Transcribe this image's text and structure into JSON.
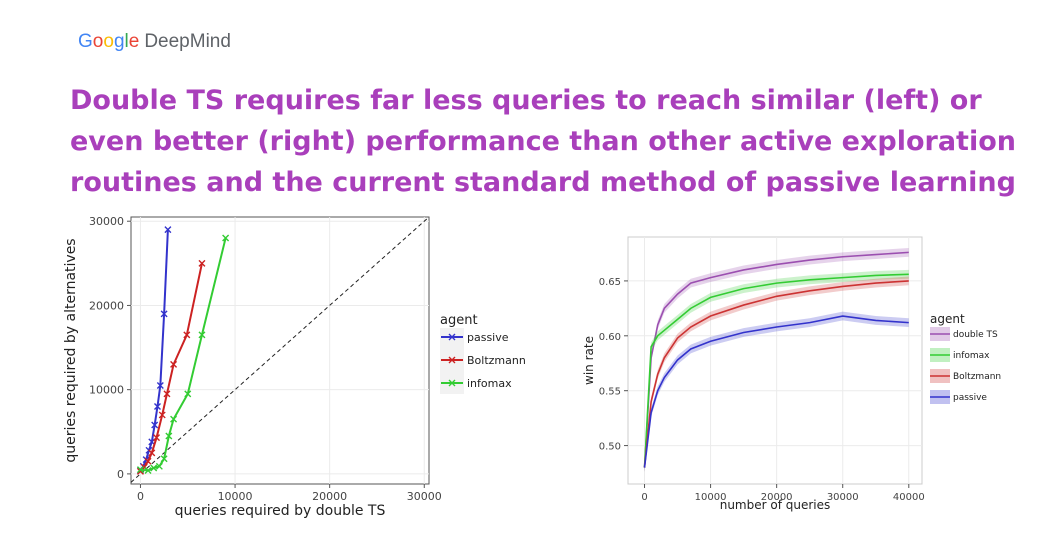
{
  "header": {
    "logo_google": "Google",
    "logo_deepmind": "DeepMind",
    "headline": "Double TS requires far less queries to reach similar (left) or even better (right) performance than other active exploration routines and the current standard method of passive learning"
  },
  "chart_data": [
    {
      "type": "line",
      "title": "",
      "xlabel": "queries required by double TS",
      "ylabel": "queries required by alternatives",
      "xlim": [
        -1000,
        30500
      ],
      "ylim": [
        -1200,
        30500
      ],
      "xticks": [
        "0",
        "10000",
        "20000",
        "30000"
      ],
      "yticks": [
        "0",
        "10000",
        "20000",
        "30000"
      ],
      "grid": true,
      "legend_title": "agent",
      "legend_position": "right",
      "reference_line": "y = x (dashed)",
      "marker": "x",
      "series": [
        {
          "name": "passive",
          "color": "#3333cc",
          "x": [
            0,
            300,
            600,
            900,
            1200,
            1500,
            1800,
            2100,
            2500,
            2900
          ],
          "y": [
            400,
            900,
            1700,
            2800,
            3800,
            5800,
            8000,
            10500,
            19000,
            29000
          ]
        },
        {
          "name": "Boltzmann",
          "color": "#cc2222",
          "x": [
            0,
            400,
            800,
            1200,
            1700,
            2300,
            2800,
            3500,
            4900,
            6500
          ],
          "y": [
            300,
            800,
            1500,
            2500,
            4300,
            7000,
            9500,
            13000,
            16500,
            25000
          ]
        },
        {
          "name": "infomax",
          "color": "#33cc33",
          "x": [
            0,
            800,
            1400,
            2000,
            2500,
            3000,
            3500,
            5000,
            6500,
            9000
          ],
          "y": [
            500,
            400,
            700,
            900,
            1800,
            4500,
            6500,
            9500,
            16500,
            28000
          ]
        }
      ]
    },
    {
      "type": "line",
      "title": "",
      "xlabel": "number of queries",
      "ylabel": "win rate",
      "xlim": [
        -2500,
        42000
      ],
      "ylim": [
        0.465,
        0.69
      ],
      "xticks": [
        "0",
        "10000",
        "20000",
        "30000",
        "40000"
      ],
      "yticks": [
        "0.50",
        "0.55",
        "0.60",
        "0.65"
      ],
      "grid": true,
      "legend_title": "agent",
      "legend_position": "right",
      "shaded_band": true,
      "series": [
        {
          "name": "double TS",
          "color": "#9b4fb0",
          "x": [
            0,
            1000,
            2000,
            3000,
            5000,
            7000,
            10000,
            15000,
            20000,
            25000,
            30000,
            35000,
            40000
          ],
          "y": [
            0.48,
            0.58,
            0.61,
            0.625,
            0.638,
            0.648,
            0.653,
            0.66,
            0.665,
            0.669,
            0.672,
            0.674,
            0.676
          ]
        },
        {
          "name": "infomax",
          "color": "#33cc33",
          "x": [
            0,
            1000,
            2000,
            3000,
            5000,
            7000,
            10000,
            15000,
            20000,
            25000,
            30000,
            35000,
            40000
          ],
          "y": [
            0.48,
            0.59,
            0.6,
            0.605,
            0.615,
            0.625,
            0.635,
            0.643,
            0.648,
            0.651,
            0.653,
            0.655,
            0.656
          ]
        },
        {
          "name": "Boltzmann",
          "color": "#cc3333",
          "x": [
            0,
            1000,
            2000,
            3000,
            5000,
            7000,
            10000,
            15000,
            20000,
            25000,
            30000,
            35000,
            40000
          ],
          "y": [
            0.48,
            0.54,
            0.565,
            0.58,
            0.598,
            0.608,
            0.618,
            0.628,
            0.636,
            0.641,
            0.645,
            0.648,
            0.65
          ]
        },
        {
          "name": "passive",
          "color": "#3333cc",
          "x": [
            0,
            1000,
            2000,
            3000,
            5000,
            7000,
            10000,
            15000,
            20000,
            25000,
            30000,
            35000,
            40000
          ],
          "y": [
            0.48,
            0.53,
            0.55,
            0.562,
            0.578,
            0.588,
            0.595,
            0.603,
            0.608,
            0.612,
            0.618,
            0.614,
            0.612
          ]
        }
      ]
    }
  ]
}
